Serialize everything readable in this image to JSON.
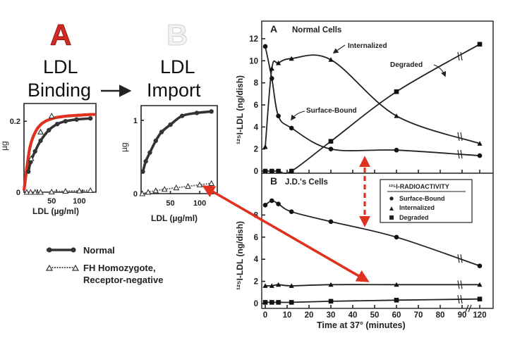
{
  "chart_data": [
    {
      "id": "binding",
      "type": "line",
      "panel_letter": "A",
      "heading": [
        "LDL",
        "Binding"
      ],
      "xlabel": "LDL (µg/ml)",
      "ylabel": "µg",
      "xlim": [
        0,
        130
      ],
      "ylim": [
        0,
        0.25
      ],
      "x_ticks": [
        50,
        100
      ],
      "y_ticks": [
        {
          "value": 0,
          "label": "0"
        },
        {
          "value": 0.2,
          "label": "0.2"
        }
      ],
      "series": [
        {
          "name": "Normal",
          "x": [
            8,
            12,
            20,
            30,
            45,
            60,
            75,
            95,
            120
          ],
          "y": [
            0.058,
            0.085,
            0.115,
            0.145,
            0.175,
            0.192,
            0.2,
            0.205,
            0.208
          ]
        },
        {
          "name": "FH Homozygote, Receptor-negative",
          "x": [
            5,
            12,
            20,
            30,
            50,
            75,
            100,
            120
          ],
          "y": [
            0.0,
            0.0,
            0.0,
            0.0,
            0.001,
            0.003,
            0.004,
            0.005
          ]
        },
        {
          "name": "fit",
          "x": [
            0,
            10,
            20,
            30,
            40,
            50,
            60,
            70,
            80,
            90,
            100,
            110,
            120,
            130
          ],
          "y": [
            0.005,
            0.12,
            0.168,
            0.19,
            0.201,
            0.207,
            0.211,
            0.213,
            0.215,
            0.216,
            0.217,
            0.218,
            0.219,
            0.219
          ]
        }
      ],
      "triangle_markers": [
        {
          "x": 13,
          "y": 0.095
        },
        {
          "x": 30,
          "y": 0.17
        },
        {
          "x": 50,
          "y": 0.215
        }
      ]
    },
    {
      "id": "import",
      "type": "line",
      "panel_letter": "B",
      "heading": [
        "LDL",
        "Import"
      ],
      "xlabel": "LDL (µg/ml)",
      "ylabel": "µg",
      "xlim": [
        0,
        130
      ],
      "ylim": [
        0,
        1.2
      ],
      "x_ticks": [
        50,
        100
      ],
      "y_ticks": [
        {
          "value": 0,
          "label": "0"
        },
        {
          "value": 1,
          "label": "1"
        }
      ],
      "series": [
        {
          "name": "Normal",
          "x": [
            3,
            8,
            15,
            25,
            35,
            50,
            70,
            95,
            120
          ],
          "y": [
            0.3,
            0.44,
            0.56,
            0.72,
            0.84,
            0.94,
            1.06,
            1.1,
            1.12
          ]
        },
        {
          "name": "FH Homozygote, Receptor-negative",
          "x": [
            2,
            12,
            25,
            40,
            60,
            80,
            100,
            120
          ],
          "y": [
            0.0,
            0.02,
            0.04,
            0.06,
            0.08,
            0.1,
            0.12,
            0.14
          ]
        }
      ]
    },
    {
      "id": "normal_cells",
      "type": "line",
      "panel_letter": "A",
      "title": "Normal Cells",
      "ylabel": "¹²⁵I-LDL (ng/dish)",
      "xlim": [
        0,
        120
      ],
      "ylim": [
        0,
        12
      ],
      "y_ticks": [
        0,
        2,
        4,
        6,
        8,
        10,
        12
      ],
      "series": [
        {
          "name": "Surface-Bound",
          "x": [
            0,
            3,
            6,
            12,
            30,
            60,
            120
          ],
          "y": [
            11.3,
            8.4,
            5.0,
            3.9,
            2.0,
            1.9,
            1.4
          ]
        },
        {
          "name": "Internalized",
          "x": [
            0,
            3,
            6,
            12,
            30,
            60,
            120
          ],
          "y": [
            2.2,
            9.3,
            9.8,
            10.2,
            10.1,
            5.0,
            2.5
          ]
        },
        {
          "name": "Degraded",
          "x": [
            0,
            3,
            6,
            12,
            30,
            60,
            120
          ],
          "y": [
            0,
            0,
            0,
            0,
            2.7,
            7.2,
            11.5
          ]
        }
      ],
      "annotations": [
        "Internalized",
        "Degraded",
        "Surface-Bound"
      ]
    },
    {
      "id": "jd_cells",
      "type": "line",
      "panel_letter": "B",
      "title": "J.D.'s Cells",
      "ylabel": "¹²⁵I-LDL (ng/dish)",
      "xlabel": "Time at 37°  (minutes)",
      "xlim": [
        0,
        120
      ],
      "ylim": [
        0,
        10
      ],
      "x_ticks": [
        0,
        10,
        20,
        30,
        40,
        50,
        60,
        70,
        80,
        90,
        120
      ],
      "y_ticks": [
        0,
        2,
        4,
        6,
        8
      ],
      "series": [
        {
          "name": "Surface-Bound",
          "x": [
            0,
            3,
            6,
            12,
            30,
            60,
            120
          ],
          "y": [
            8.9,
            9.3,
            9.0,
            8.3,
            7.4,
            6.0,
            3.4
          ]
        },
        {
          "name": "Internalized",
          "x": [
            0,
            3,
            6,
            12,
            30,
            60,
            120
          ],
          "y": [
            1.6,
            1.6,
            1.7,
            1.6,
            1.7,
            1.7,
            1.7
          ]
        },
        {
          "name": "Degraded",
          "x": [
            0,
            3,
            6,
            12,
            30,
            60,
            120
          ],
          "y": [
            0.1,
            0.1,
            0.1,
            0.1,
            0.2,
            0.3,
            0.4
          ]
        }
      ]
    }
  ],
  "legend_left": [
    {
      "label": "Normal"
    },
    {
      "label": "FH Homozygote,"
    },
    {
      "label": "Receptor-negative"
    }
  ],
  "legend_right": {
    "title": "¹²⁵I-RADIOACTIVITY",
    "items": [
      "Surface-Bound",
      "Internalized",
      "Degraded"
    ]
  },
  "colors": {
    "panel_a_letter": "#d42a24",
    "panel_b_letter": "#eeeeee",
    "red": "#e0301e",
    "ink": "#222222"
  }
}
